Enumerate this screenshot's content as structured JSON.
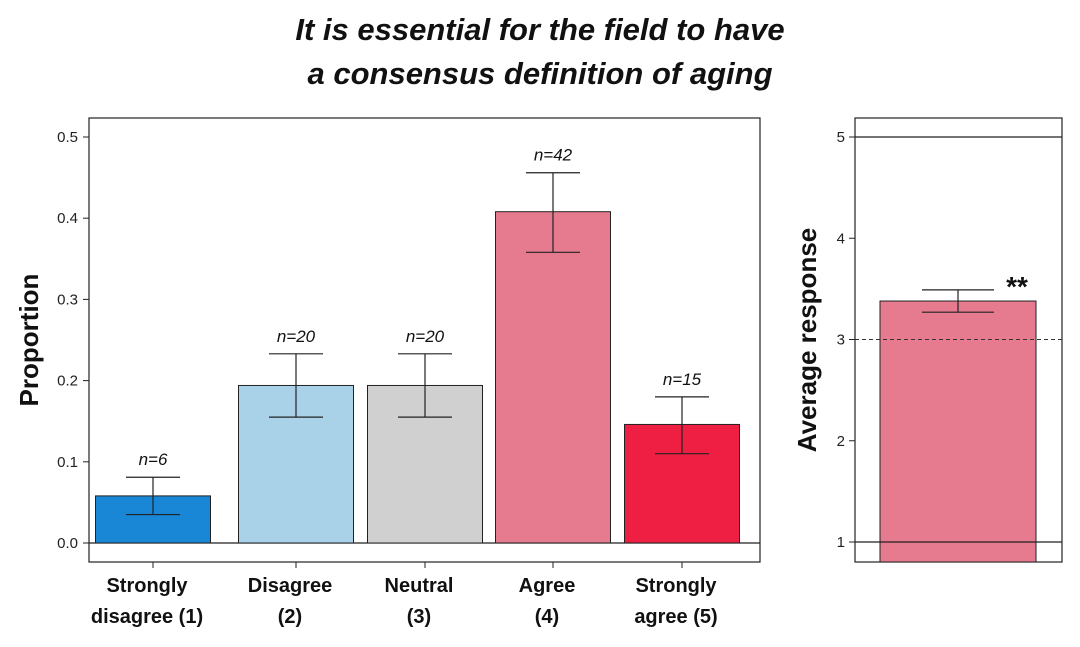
{
  "title": {
    "line1": "It is essential for the field to have",
    "line2": "a consensus definition of aging"
  },
  "chart_data": [
    {
      "type": "bar",
      "ylabel": "Proportion",
      "ylim": [
        0,
        0.5
      ],
      "yticks": [
        "0.0",
        "0.1",
        "0.2",
        "0.3",
        "0.4",
        "0.5"
      ],
      "categories": [
        {
          "line1": "Strongly",
          "line2": "disagree (1)"
        },
        {
          "line1": "Disagree",
          "line2": "(2)"
        },
        {
          "line1": "Neutral",
          "line2": "(3)"
        },
        {
          "line1": "Agree",
          "line2": "(4)"
        },
        {
          "line1": "Strongly",
          "line2": "agree (5)"
        }
      ],
      "values": [
        0.058,
        0.194,
        0.194,
        0.408,
        0.146
      ],
      "error_low": [
        0.035,
        0.155,
        0.155,
        0.358,
        0.11
      ],
      "error_high": [
        0.081,
        0.233,
        0.233,
        0.456,
        0.18
      ],
      "n_labels": [
        "n=6",
        "n=20",
        "n=20",
        "n=42",
        "n=15"
      ],
      "colors": [
        "#1a87d6",
        "#a9d2e8",
        "#d0d0d0",
        "#e67a8e",
        "#ee1f43"
      ],
      "grid": false
    },
    {
      "type": "bar",
      "ylabel": "Average response",
      "ylim": [
        1,
        5
      ],
      "yticks": [
        "1",
        "2",
        "3",
        "4",
        "5"
      ],
      "values": [
        3.38
      ],
      "error_low": [
        3.27
      ],
      "error_high": [
        3.49
      ],
      "reference_line": 3,
      "significance": "**",
      "colors": [
        "#e67a8e"
      ],
      "grid": false
    }
  ]
}
